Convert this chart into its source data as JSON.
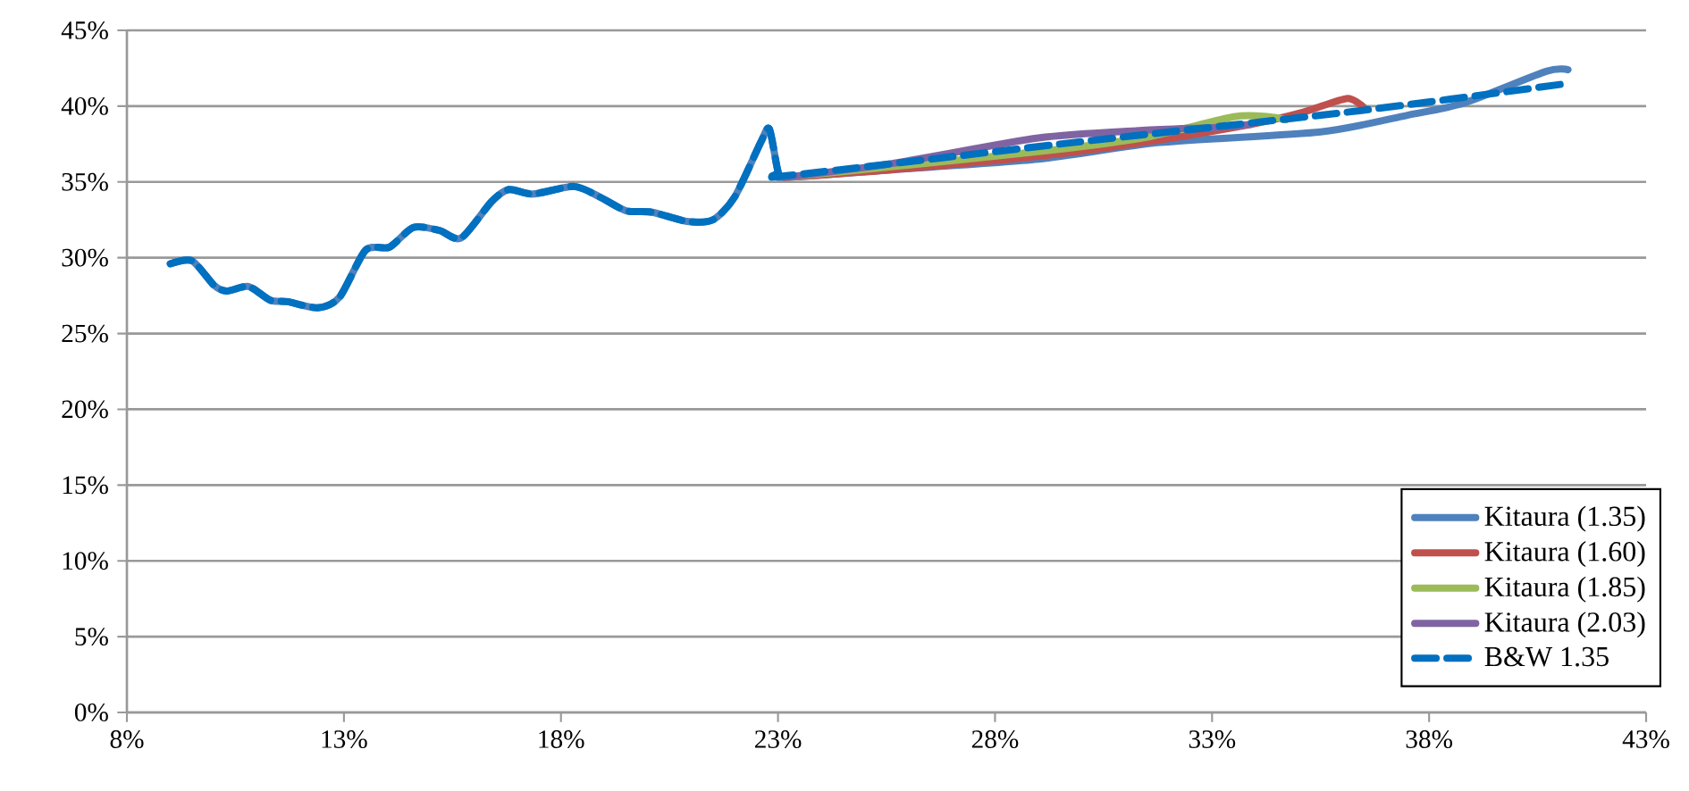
{
  "chart_data": {
    "type": "line",
    "xlim": [
      8,
      43
    ],
    "ylim": [
      0,
      45
    ],
    "xticks": [
      {
        "value": 8,
        "label": "8%"
      },
      {
        "value": 13,
        "label": "13%"
      },
      {
        "value": 18,
        "label": "18%"
      },
      {
        "value": 23,
        "label": "23%"
      },
      {
        "value": 28,
        "label": "28%"
      },
      {
        "value": 33,
        "label": "33%"
      },
      {
        "value": 38,
        "label": "38%"
      },
      {
        "value": 43,
        "label": "43%"
      }
    ],
    "yticks": [
      {
        "value": 0,
        "label": "0%"
      },
      {
        "value": 5,
        "label": "5%"
      },
      {
        "value": 10,
        "label": "10%"
      },
      {
        "value": 15,
        "label": "15%"
      },
      {
        "value": 20,
        "label": "20%"
      },
      {
        "value": 25,
        "label": "25%"
      },
      {
        "value": 30,
        "label": "30%"
      },
      {
        "value": 35,
        "label": "35%"
      },
      {
        "value": 40,
        "label": "40%"
      },
      {
        "value": 45,
        "label": "45%"
      }
    ],
    "grid": "y",
    "legend": "bottom right",
    "marker": "none",
    "series": [
      {
        "name": "Kitaura (1.35)",
        "color": "#4f81bd",
        "line_style": "solid",
        "x": [
          9,
          9.5,
          10,
          10.3,
          10.8,
          11.3,
          11.7,
          12.4,
          12.9,
          13.5,
          14.05,
          14.6,
          15.2,
          15.7,
          16.4,
          16.8,
          17.35,
          18.3,
          18.9,
          19.5,
          20.1,
          20.9,
          21.5,
          22,
          22.6,
          22.8,
          23,
          23.15,
          25.6,
          29,
          31.8,
          35.5,
          37.5,
          38.8,
          40.7,
          41.2
        ],
        "values": [
          29.6,
          29.8,
          28.2,
          27.8,
          28.1,
          27.2,
          27.1,
          26.7,
          27.4,
          30.5,
          30.7,
          32,
          31.8,
          31.3,
          33.7,
          34.5,
          34.2,
          34.7,
          34,
          33.1,
          33,
          32.4,
          32.5,
          34,
          37.6,
          38.5,
          35.7,
          35.3,
          35.8,
          36.5,
          37.6,
          38.3,
          39.4,
          40.2,
          42.3,
          42.4
        ]
      },
      {
        "name": "Kitaura (1.60)",
        "color": "#c0504d",
        "line_style": "solid",
        "x": [
          23.15,
          25.6,
          29,
          31.4,
          33.9,
          35.1,
          36.1,
          36.5
        ],
        "values": [
          35.3,
          35.8,
          36.7,
          37.6,
          38.8,
          39.6,
          40.5,
          39.9
        ]
      },
      {
        "name": "Kitaura (1.85)",
        "color": "#9bbb59",
        "line_style": "solid",
        "x": [
          23.15,
          25.6,
          29,
          31.4,
          33.5,
          34.3,
          34.7
        ],
        "values": [
          35.3,
          36,
          37,
          37.9,
          39.3,
          39.3,
          39.1
        ]
      },
      {
        "name": "Kitaura (2.03)",
        "color": "#8064a2",
        "line_style": "solid",
        "x": [
          23.15,
          25.6,
          29,
          31.4,
          33.1,
          33.9
        ],
        "values": [
          35.3,
          36.2,
          37.9,
          38.4,
          38.6,
          38.8
        ]
      },
      {
        "name": "B&W 1.35",
        "color": "#0070c0",
        "line_style": "dashed",
        "x": [
          9,
          9.5,
          10,
          10.3,
          10.8,
          11.3,
          11.7,
          12.4,
          12.9,
          13.5,
          14.05,
          14.6,
          15.2,
          15.7,
          16.4,
          16.8,
          17.35,
          18.3,
          18.9,
          19.5,
          20.1,
          20.9,
          21.5,
          22,
          22.6,
          22.8,
          23,
          23.15,
          29.8,
          36.4,
          41.2
        ],
        "values": [
          29.6,
          29.8,
          28.2,
          27.8,
          28.1,
          27.2,
          27.1,
          26.7,
          27.4,
          30.5,
          30.7,
          32,
          31.8,
          31.3,
          33.7,
          34.5,
          34.2,
          34.7,
          34,
          33.1,
          33,
          32.4,
          32.5,
          34,
          37.6,
          38.5,
          35.7,
          35.4,
          37.6,
          39.7,
          41.5
        ]
      }
    ]
  }
}
